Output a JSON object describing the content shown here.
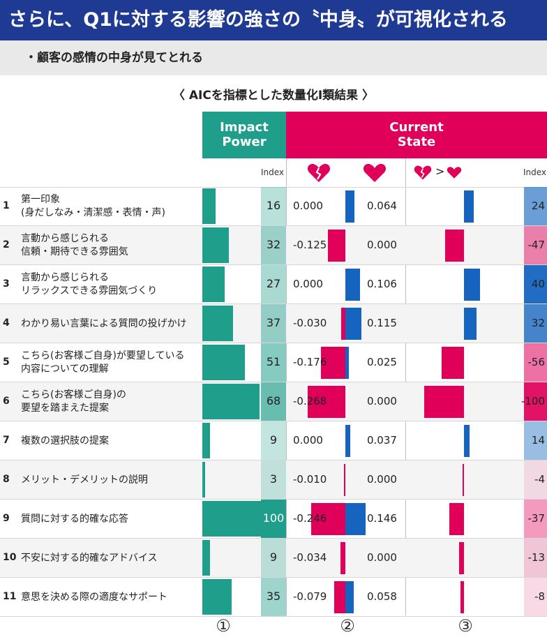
{
  "title": "さらに、Q1に対する影響の強さの〝中身〟が可視化される",
  "subtitle": "・顧客の感情の中身が見てとれる",
  "chart_heading": "〈 AICを指標とした数量化Ⅰ類結果 〉",
  "headers": {
    "impact_l1": "Impact",
    "impact_l2": "Power",
    "current_l1": "Current",
    "current_l2": "State",
    "index_label": "Index",
    "compare_gt": ">"
  },
  "icons": {
    "broken_heart": "broken-heart-icon",
    "heart": "heart-icon",
    "colors": {
      "teal": "#1e9e8b",
      "pink": "#e0005a",
      "blue": "#1565c0"
    }
  },
  "markers": [
    "①",
    "②",
    "③"
  ],
  "chart_data": [
    {
      "type": "bar",
      "title": "Impact Power",
      "categories": [
        "1",
        "2",
        "3",
        "4",
        "5",
        "6",
        "7",
        "8",
        "9",
        "10",
        "11"
      ],
      "series": [
        {
          "name": "Index",
          "values": [
            16,
            32,
            27,
            37,
            51,
            68,
            9,
            3,
            100,
            9,
            35
          ]
        }
      ]
    },
    {
      "type": "bar",
      "title": "Current State",
      "categories": [
        "1",
        "2",
        "3",
        "4",
        "5",
        "6",
        "7",
        "8",
        "9",
        "10",
        "11"
      ],
      "series": [
        {
          "name": "broken-heart",
          "values": [
            0.0,
            -0.125,
            0.0,
            -0.03,
            -0.176,
            -0.268,
            0.0,
            -0.01,
            -0.246,
            -0.034,
            -0.079
          ]
        },
        {
          "name": "heart",
          "values": [
            0.064,
            0.0,
            0.106,
            0.115,
            0.025,
            0.0,
            0.037,
            0.0,
            0.146,
            0.0,
            0.058
          ]
        },
        {
          "name": "Index",
          "values": [
            24,
            -47,
            40,
            32,
            -56,
            -100,
            14,
            -4,
            -37,
            -13,
            -8
          ]
        }
      ]
    }
  ],
  "rows": [
    {
      "num": "1",
      "label1": "第一印象",
      "label2": "(身だしなみ・清潔感・表情・声)",
      "impact": "16",
      "neg": "0.000",
      "pos": "0.064",
      "ci": "24"
    },
    {
      "num": "2",
      "label1": "言動から感じられる",
      "label2": "信頼・期待できる雰囲気",
      "impact": "32",
      "neg": "-0.125",
      "pos": "0.000",
      "ci": "-47"
    },
    {
      "num": "3",
      "label1": "言動から感じられる",
      "label2": "リラックスできる雰囲気づくり",
      "impact": "27",
      "neg": "0.000",
      "pos": "0.106",
      "ci": "40"
    },
    {
      "num": "4",
      "label1": "わかり易い言葉による質問の投げかけ",
      "label2": "",
      "impact": "37",
      "neg": "-0.030",
      "pos": "0.115",
      "ci": "32"
    },
    {
      "num": "5",
      "label1": "こちら(お客様ご自身)が要望している",
      "label2": "内容についての理解",
      "impact": "51",
      "neg": "-0.176",
      "pos": "0.025",
      "ci": "-56"
    },
    {
      "num": "6",
      "label1": "こちら(お客様ご自身)の",
      "label2": "要望を踏まえた提案",
      "impact": "68",
      "neg": "-0.268",
      "pos": "0.000",
      "ci": "-100"
    },
    {
      "num": "7",
      "label1": "複数の選択肢の提案",
      "label2": "",
      "impact": "9",
      "neg": "0.000",
      "pos": "0.037",
      "ci": "14"
    },
    {
      "num": "8",
      "label1": "メリット・デメリットの説明",
      "label2": "",
      "impact": "3",
      "neg": "-0.010",
      "pos": "0.000",
      "ci": "-4"
    },
    {
      "num": "9",
      "label1": "質問に対する的確な応答",
      "label2": "",
      "impact": "100",
      "neg": "-0.246",
      "pos": "0.146",
      "ci": "-37"
    },
    {
      "num": "10",
      "label1": "不安に対する的確なアドバイス",
      "label2": "",
      "impact": "9",
      "neg": "-0.034",
      "pos": "0.000",
      "ci": "-13"
    },
    {
      "num": "11",
      "label1": "意思を決める際の適度なサポート",
      "label2": "",
      "impact": "35",
      "neg": "-0.079",
      "pos": "0.058",
      "ci": "-8"
    }
  ]
}
